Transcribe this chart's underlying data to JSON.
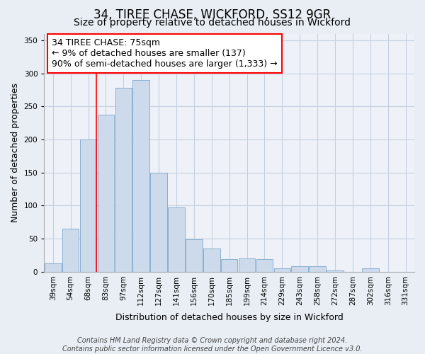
{
  "title": "34, TIREE CHASE, WICKFORD, SS12 9GR",
  "subtitle": "Size of property relative to detached houses in Wickford",
  "xlabel": "Distribution of detached houses by size in Wickford",
  "ylabel": "Number of detached properties",
  "categories": [
    "39sqm",
    "54sqm",
    "68sqm",
    "83sqm",
    "97sqm",
    "112sqm",
    "127sqm",
    "141sqm",
    "156sqm",
    "170sqm",
    "185sqm",
    "199sqm",
    "214sqm",
    "229sqm",
    "243sqm",
    "258sqm",
    "272sqm",
    "287sqm",
    "302sqm",
    "316sqm",
    "331sqm"
  ],
  "values": [
    13,
    65,
    200,
    238,
    278,
    290,
    150,
    97,
    49,
    35,
    19,
    20,
    19,
    5,
    8,
    8,
    2,
    0,
    5,
    0,
    0
  ],
  "bar_color": "#ccdaeb",
  "bar_edge_color": "#8ab0d0",
  "vline_x_index": 2,
  "vline_color": "red",
  "annotation_line1": "34 TIREE CHASE: 75sqm",
  "annotation_line2": "← 9% of detached houses are smaller (137)",
  "annotation_line3": "90% of semi-detached houses are larger (1,333) →",
  "annotation_box_edge_color": "red",
  "annotation_box_face_color": "white",
  "ylim": [
    0,
    360
  ],
  "yticks": [
    0,
    50,
    100,
    150,
    200,
    250,
    300,
    350
  ],
  "footer_line1": "Contains HM Land Registry data © Crown copyright and database right 2024.",
  "footer_line2": "Contains public sector information licensed under the Open Government Licence v3.0.",
  "background_color": "#e8eef4",
  "plot_background_color": "#eef2f8",
  "grid_color": "#c5cfe0",
  "title_fontsize": 12,
  "subtitle_fontsize": 10,
  "axis_label_fontsize": 9,
  "tick_fontsize": 7.5,
  "footer_fontsize": 7,
  "annotation_fontsize": 9
}
